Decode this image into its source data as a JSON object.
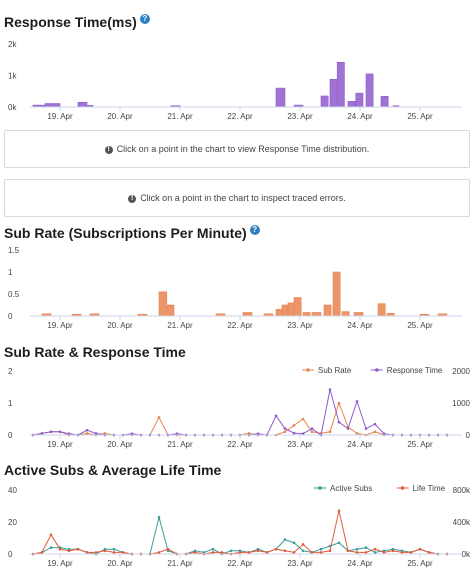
{
  "sections": {
    "response_time_title": "Response Time(ms)",
    "response_info": "Click on a point in the chart to view Response Time distribution.",
    "traced_info": "Click on a point in the chart to inspect traced errors.",
    "sub_rate_title": "Sub Rate (Subscriptions Per Minute)",
    "combo_title": "Sub Rate & Response Time",
    "active_title": "Active Subs & Average Life Time",
    "help_glyph": "?",
    "info_glyph": "!"
  },
  "chart_data": [
    {
      "type": "bar",
      "title": "Response Time(ms)",
      "y_ticks": [
        "0k",
        "1k",
        "2k"
      ],
      "ylim": [
        0,
        2000
      ],
      "x_ticks": [
        "19. Apr",
        "20. Apr",
        "21. Apr",
        "22. Apr",
        "23. Apr",
        "24. Apr",
        "25. Apr"
      ],
      "x_range_days": [
        18.5,
        25.7
      ],
      "series": [
        {
          "color": "#8e5bcc",
          "bars": [
            {
              "x": 18.55,
              "w": 0.2,
              "v": 60
            },
            {
              "x": 18.75,
              "w": 0.25,
              "v": 110
            },
            {
              "x": 19.3,
              "w": 0.15,
              "v": 150
            },
            {
              "x": 19.45,
              "w": 0.1,
              "v": 50
            },
            {
              "x": 20.85,
              "w": 0.15,
              "v": 40
            },
            {
              "x": 22.6,
              "w": 0.15,
              "v": 600
            },
            {
              "x": 22.9,
              "w": 0.15,
              "v": 60
            },
            {
              "x": 23.35,
              "w": 0.12,
              "v": 350
            },
            {
              "x": 23.5,
              "w": 0.12,
              "v": 880
            },
            {
              "x": 23.62,
              "w": 0.12,
              "v": 1420
            },
            {
              "x": 23.8,
              "w": 0.12,
              "v": 180
            },
            {
              "x": 23.93,
              "w": 0.12,
              "v": 440
            },
            {
              "x": 24.1,
              "w": 0.12,
              "v": 1050
            },
            {
              "x": 24.35,
              "w": 0.12,
              "v": 340
            },
            {
              "x": 24.55,
              "w": 0.1,
              "v": 40
            }
          ]
        }
      ]
    },
    {
      "type": "bar",
      "title": "Sub Rate (Subscriptions Per Minute)",
      "y_ticks": [
        "0",
        "0.5",
        "1",
        "1.5"
      ],
      "ylim": [
        0,
        1.5
      ],
      "x_ticks": [
        "19. Apr",
        "20. Apr",
        "21. Apr",
        "22. Apr",
        "23. Apr",
        "24. Apr",
        "25. Apr"
      ],
      "x_range_days": [
        18.5,
        25.7
      ],
      "series": [
        {
          "color": "#e8834f",
          "bars": [
            {
              "x": 18.7,
              "w": 0.15,
              "v": 0.05
            },
            {
              "x": 19.2,
              "w": 0.15,
              "v": 0.04
            },
            {
              "x": 19.5,
              "w": 0.15,
              "v": 0.05
            },
            {
              "x": 20.3,
              "w": 0.15,
              "v": 0.04
            },
            {
              "x": 20.65,
              "w": 0.13,
              "v": 0.55
            },
            {
              "x": 20.78,
              "w": 0.12,
              "v": 0.25
            },
            {
              "x": 21.6,
              "w": 0.15,
              "v": 0.05
            },
            {
              "x": 22.05,
              "w": 0.15,
              "v": 0.08
            },
            {
              "x": 22.4,
              "w": 0.15,
              "v": 0.05
            },
            {
              "x": 22.6,
              "w": 0.1,
              "v": 0.15
            },
            {
              "x": 22.7,
              "w": 0.1,
              "v": 0.25
            },
            {
              "x": 22.8,
              "w": 0.1,
              "v": 0.3
            },
            {
              "x": 22.9,
              "w": 0.12,
              "v": 0.42
            },
            {
              "x": 23.05,
              "w": 0.12,
              "v": 0.08
            },
            {
              "x": 23.2,
              "w": 0.15,
              "v": 0.08
            },
            {
              "x": 23.4,
              "w": 0.12,
              "v": 0.25
            },
            {
              "x": 23.55,
              "w": 0.12,
              "v": 1.0
            },
            {
              "x": 23.7,
              "w": 0.12,
              "v": 0.1
            },
            {
              "x": 23.9,
              "w": 0.15,
              "v": 0.08
            },
            {
              "x": 24.3,
              "w": 0.12,
              "v": 0.28
            },
            {
              "x": 24.45,
              "w": 0.12,
              "v": 0.06
            },
            {
              "x": 25.0,
              "w": 0.15,
              "v": 0.04
            },
            {
              "x": 25.3,
              "w": 0.15,
              "v": 0.05
            }
          ]
        }
      ]
    },
    {
      "type": "line",
      "title": "Sub Rate & Response Time",
      "legend": [
        "Sub Rate",
        "Response Time"
      ],
      "left_ticks": [
        "0",
        "1",
        "2"
      ],
      "right_ticks": [
        "0",
        "1000",
        "2000"
      ],
      "left_ylim": [
        0,
        2
      ],
      "right_ylim": [
        0,
        2000
      ],
      "x_ticks": [
        "19. Apr",
        "20. Apr",
        "21. Apr",
        "22. Apr",
        "23. Apr",
        "24. Apr",
        "25. Apr"
      ],
      "x_range_days": [
        18.5,
        25.7
      ],
      "series": [
        {
          "name": "Sub Rate",
          "color": "#e8834f",
          "axis": "left",
          "x": [
            18.55,
            18.7,
            18.85,
            19.0,
            19.15,
            19.3,
            19.45,
            19.6,
            19.75,
            19.9,
            20.05,
            20.2,
            20.35,
            20.5,
            20.65,
            20.8,
            20.95,
            21.1,
            21.25,
            21.4,
            21.55,
            21.7,
            21.85,
            22.0,
            22.15,
            22.3,
            22.45,
            22.6,
            22.75,
            22.9,
            23.05,
            23.2,
            23.35,
            23.5,
            23.65,
            23.8,
            23.95,
            24.1,
            24.25,
            24.4,
            24.55,
            24.7,
            24.85,
            25.0,
            25.15,
            25.3,
            25.45
          ],
          "y": [
            0,
            0.05,
            0.1,
            0.1,
            0,
            0,
            0.05,
            0,
            0.05,
            0,
            0,
            0,
            0,
            0,
            0.55,
            0,
            0,
            0,
            0,
            0,
            0,
            0,
            0,
            0,
            0.05,
            0,
            0,
            0,
            0.1,
            0.3,
            0.5,
            0.1,
            0.05,
            0.1,
            1.0,
            0.25,
            0.05,
            0,
            0.1,
            0,
            0,
            0,
            0,
            0,
            0,
            0,
            0
          ]
        },
        {
          "name": "Response Time",
          "color": "#8e5bcc",
          "axis": "right",
          "x": [
            18.55,
            18.7,
            18.85,
            19.0,
            19.15,
            19.3,
            19.45,
            19.6,
            19.75,
            19.9,
            20.05,
            20.2,
            20.35,
            20.5,
            20.65,
            20.8,
            20.95,
            21.1,
            21.25,
            21.4,
            21.55,
            21.7,
            21.85,
            22.0,
            22.15,
            22.3,
            22.45,
            22.6,
            22.75,
            22.9,
            23.05,
            23.2,
            23.35,
            23.5,
            23.65,
            23.8,
            23.95,
            24.1,
            24.25,
            24.4,
            24.55,
            24.7,
            24.85,
            25.0,
            25.15,
            25.3,
            25.45
          ],
          "y": [
            0,
            50,
            100,
            100,
            40,
            0,
            150,
            50,
            0,
            0,
            0,
            40,
            0,
            0,
            0,
            0,
            40,
            0,
            0,
            0,
            0,
            0,
            0,
            0,
            0,
            40,
            0,
            600,
            200,
            60,
            40,
            200,
            0,
            1420,
            400,
            200,
            1050,
            200,
            340,
            40,
            0,
            0,
            0,
            0,
            0,
            0,
            0
          ]
        }
      ]
    },
    {
      "type": "line",
      "title": "Active Subs & Average Life Time",
      "legend": [
        "Active Subs",
        "Life Time"
      ],
      "left_ticks": [
        "0",
        "20",
        "40"
      ],
      "right_ticks": [
        "0k",
        "400k",
        "800k"
      ],
      "left_ylim": [
        0,
        40
      ],
      "right_ylim": [
        0,
        800000
      ],
      "x_ticks": [
        "19. Apr",
        "20. Apr",
        "21. Apr",
        "22. Apr",
        "23. Apr",
        "24. Apr",
        "25. Apr"
      ],
      "x_range_days": [
        18.5,
        25.7
      ],
      "series": [
        {
          "name": "Active Subs",
          "color": "#3a9e9a",
          "axis": "left",
          "x": [
            18.55,
            18.7,
            18.85,
            19.0,
            19.15,
            19.3,
            19.45,
            19.6,
            19.75,
            19.9,
            20.05,
            20.2,
            20.35,
            20.5,
            20.65,
            20.8,
            20.95,
            21.1,
            21.25,
            21.4,
            21.55,
            21.7,
            21.85,
            22.0,
            22.15,
            22.3,
            22.45,
            22.6,
            22.75,
            22.9,
            23.05,
            23.2,
            23.35,
            23.5,
            23.65,
            23.8,
            23.95,
            24.1,
            24.25,
            24.4,
            24.55,
            24.7,
            24.85,
            25.0,
            25.15,
            25.3,
            25.45
          ],
          "y": [
            0,
            1,
            4,
            4,
            3,
            3,
            1,
            0,
            3,
            3,
            1,
            0,
            0,
            0,
            23,
            2,
            0,
            0,
            2,
            1,
            3,
            0,
            2,
            2,
            1,
            3,
            1,
            3,
            9,
            7,
            2,
            1,
            3,
            5,
            7,
            2,
            3,
            4,
            1,
            2,
            3,
            2,
            1,
            3,
            1,
            0,
            0
          ]
        },
        {
          "name": "Life Time",
          "color": "#e05a38",
          "axis": "right",
          "x": [
            18.55,
            18.7,
            18.85,
            19.0,
            19.15,
            19.3,
            19.45,
            19.6,
            19.75,
            19.9,
            20.05,
            20.2,
            20.35,
            20.5,
            20.65,
            20.8,
            20.95,
            21.1,
            21.25,
            21.4,
            21.55,
            21.7,
            21.85,
            22.0,
            22.15,
            22.3,
            22.45,
            22.6,
            22.75,
            22.9,
            23.05,
            23.2,
            23.35,
            23.5,
            23.65,
            23.8,
            23.95,
            24.1,
            24.25,
            24.4,
            24.55,
            24.7,
            24.85,
            25.0,
            25.15,
            25.3,
            25.45
          ],
          "y": [
            0,
            20000,
            240000,
            60000,
            40000,
            60000,
            20000,
            20000,
            40000,
            20000,
            20000,
            0,
            0,
            0,
            20000,
            60000,
            0,
            0,
            20000,
            0,
            20000,
            20000,
            0,
            20000,
            20000,
            40000,
            20000,
            60000,
            40000,
            20000,
            120000,
            20000,
            20000,
            40000,
            540000,
            40000,
            20000,
            20000,
            60000,
            20000,
            40000,
            20000,
            20000,
            60000,
            20000,
            0,
            0
          ]
        }
      ]
    }
  ]
}
